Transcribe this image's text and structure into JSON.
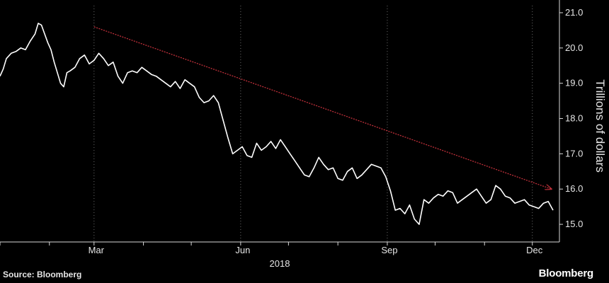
{
  "chart_data": {
    "type": "line",
    "title": "",
    "ylabel": "Trillions of dollars",
    "xlabel": "2018",
    "ylim": [
      14.5,
      21.2
    ],
    "yticks": [
      "15.0",
      "16.0",
      "17.0",
      "18.0",
      "19.0",
      "20.0",
      "21.0"
    ],
    "xticks": [
      "Mar",
      "Jun",
      "Sep",
      "Dec"
    ],
    "grid": "vertical dotted at month ticks",
    "line_color": "#ffffff",
    "series": [
      {
        "x": [
          "2018-01-01",
          "2018-01-03",
          "2018-01-05",
          "2018-01-08",
          "2018-01-11",
          "2018-01-14",
          "2018-01-17",
          "2018-01-20",
          "2018-01-23",
          "2018-01-25",
          "2018-01-27",
          "2018-01-29",
          "2018-01-31",
          "2018-02-02",
          "2018-02-04",
          "2018-02-06",
          "2018-02-08",
          "2018-02-10",
          "2018-02-12",
          "2018-02-14",
          "2018-02-17",
          "2018-02-20",
          "2018-02-23",
          "2018-02-26",
          "2018-03-01",
          "2018-03-04",
          "2018-03-07",
          "2018-03-10",
          "2018-03-13",
          "2018-03-16",
          "2018-03-19",
          "2018-03-22",
          "2018-03-25",
          "2018-03-28",
          "2018-03-31",
          "2018-04-03",
          "2018-04-06",
          "2018-04-09",
          "2018-04-12",
          "2018-04-15",
          "2018-04-18",
          "2018-04-21",
          "2018-04-24",
          "2018-04-27",
          "2018-04-30",
          "2018-05-03",
          "2018-05-06",
          "2018-05-09",
          "2018-05-12",
          "2018-05-15",
          "2018-05-18",
          "2018-05-21",
          "2018-05-24",
          "2018-05-27",
          "2018-05-30",
          "2018-06-02",
          "2018-06-05",
          "2018-06-08",
          "2018-06-11",
          "2018-06-14",
          "2018-06-17",
          "2018-06-20",
          "2018-06-23",
          "2018-06-26",
          "2018-06-29",
          "2018-07-02",
          "2018-07-05",
          "2018-07-08",
          "2018-07-11",
          "2018-07-14",
          "2018-07-17",
          "2018-07-20",
          "2018-07-23",
          "2018-07-26",
          "2018-07-29",
          "2018-08-01",
          "2018-08-04",
          "2018-08-07",
          "2018-08-10",
          "2018-08-13",
          "2018-08-16",
          "2018-08-19",
          "2018-08-22",
          "2018-08-25",
          "2018-08-28",
          "2018-08-31",
          "2018-09-03",
          "2018-09-06",
          "2018-09-09",
          "2018-09-12",
          "2018-09-15",
          "2018-09-18",
          "2018-09-21",
          "2018-09-24",
          "2018-09-27",
          "2018-09-30",
          "2018-10-03",
          "2018-10-06",
          "2018-10-09",
          "2018-10-12",
          "2018-10-15",
          "2018-10-18",
          "2018-10-21",
          "2018-10-24",
          "2018-10-27",
          "2018-10-30",
          "2018-11-02",
          "2018-11-05",
          "2018-11-08",
          "2018-11-11",
          "2018-11-14",
          "2018-11-17",
          "2018-11-20",
          "2018-11-23",
          "2018-11-26",
          "2018-11-29",
          "2018-12-02",
          "2018-12-05",
          "2018-12-08",
          "2018-12-11",
          "2018-12-14"
        ],
        "values": [
          19.2,
          19.4,
          19.7,
          19.85,
          19.9,
          20.0,
          19.95,
          20.2,
          20.4,
          20.7,
          20.65,
          20.4,
          20.15,
          19.95,
          19.6,
          19.3,
          19.0,
          18.9,
          19.3,
          19.35,
          19.45,
          19.7,
          19.8,
          19.55,
          19.65,
          19.85,
          19.7,
          19.5,
          19.6,
          19.2,
          19.0,
          19.3,
          19.35,
          19.3,
          19.45,
          19.35,
          19.25,
          19.2,
          19.1,
          19.0,
          18.9,
          19.05,
          18.85,
          19.1,
          19.0,
          18.9,
          18.6,
          18.45,
          18.5,
          18.65,
          18.45,
          17.95,
          17.45,
          17.0,
          17.1,
          17.2,
          16.95,
          16.9,
          17.3,
          17.1,
          17.2,
          17.35,
          17.15,
          17.4,
          17.2,
          17.0,
          16.8,
          16.6,
          16.4,
          16.35,
          16.6,
          16.9,
          16.7,
          16.55,
          16.6,
          16.3,
          16.25,
          16.5,
          16.6,
          16.3,
          16.4,
          16.55,
          16.7,
          16.65,
          16.6,
          16.35,
          15.95,
          15.4,
          15.45,
          15.3,
          15.55,
          15.15,
          15.0,
          15.7,
          15.6,
          15.75,
          15.85,
          15.8,
          15.95,
          15.9,
          15.6,
          15.7,
          15.8,
          15.9,
          16.0,
          15.8,
          15.6,
          15.7,
          16.1,
          16.0,
          15.8,
          15.75,
          15.6,
          15.65,
          15.7,
          15.55,
          15.5,
          15.45,
          15.6,
          15.65,
          15.4
        ]
      }
    ],
    "annotations": [
      {
        "type": "arrow",
        "color": "#c0303a",
        "from": {
          "x": "2018-03-01",
          "y": 20.6
        },
        "to": {
          "x": "2018-12-13",
          "y": 16.0
        }
      }
    ]
  },
  "footer": {
    "source": "Source: Bloomberg",
    "brand": "Bloomberg"
  }
}
